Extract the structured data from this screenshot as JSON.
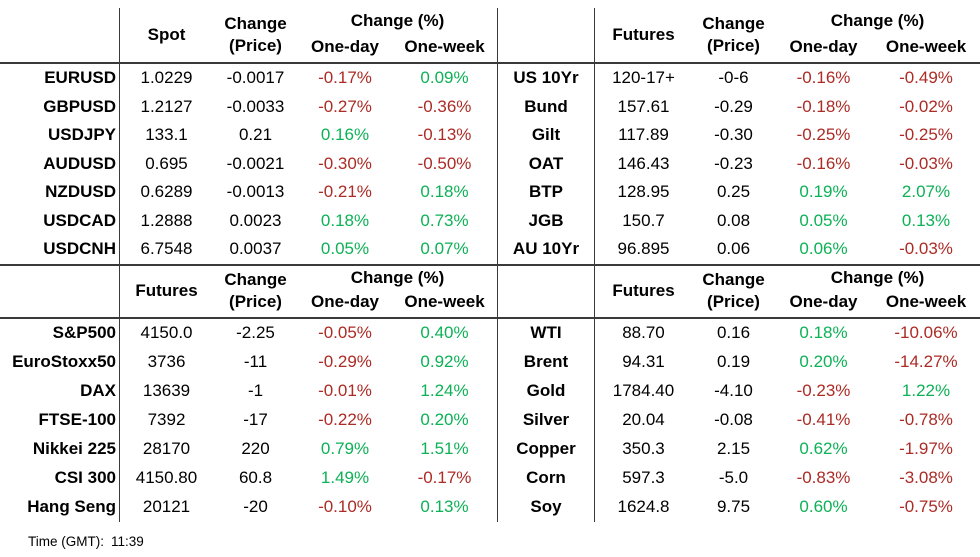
{
  "colors": {
    "positive": "#0db156",
    "negative": "#ac2b25"
  },
  "labels": {
    "change_price_line1": "Change",
    "change_price_line2": "(Price)",
    "change_pct": "Change (%)",
    "one_day": "One-day",
    "one_week": "One-week"
  },
  "footer": {
    "time_label": "Time (GMT):",
    "time_value": "11:39"
  },
  "tables": [
    {
      "id": "fx-spot",
      "value_header": "Spot",
      "rows": [
        {
          "label": "EURUSD",
          "value": "1.0229",
          "change": "-0.0017",
          "one_day": "-0.17%",
          "one_week": "0.09%"
        },
        {
          "label": "GBPUSD",
          "value": "1.2127",
          "change": "-0.0033",
          "one_day": "-0.27%",
          "one_week": "-0.36%"
        },
        {
          "label": "USDJPY",
          "value": "133.1",
          "change": "0.21",
          "one_day": "0.16%",
          "one_week": "-0.13%"
        },
        {
          "label": "AUDUSD",
          "value": "0.695",
          "change": "-0.0021",
          "one_day": "-0.30%",
          "one_week": "-0.50%"
        },
        {
          "label": "NZDUSD",
          "value": "0.6289",
          "change": "-0.0013",
          "one_day": "-0.21%",
          "one_week": "0.18%"
        },
        {
          "label": "USDCAD",
          "value": "1.2888",
          "change": "0.0023",
          "one_day": "0.18%",
          "one_week": "0.73%"
        },
        {
          "label": "USDCNH",
          "value": "6.7548",
          "change": "0.0037",
          "one_day": "0.05%",
          "one_week": "0.07%"
        }
      ]
    },
    {
      "id": "bond-futures",
      "value_header": "Futures",
      "rows": [
        {
          "label": "US 10Yr",
          "value": "120-17+",
          "change": "-0-6",
          "one_day": "-0.16%",
          "one_week": "-0.49%"
        },
        {
          "label": "Bund",
          "value": "157.61",
          "change": "-0.29",
          "one_day": "-0.18%",
          "one_week": "-0.02%"
        },
        {
          "label": "Gilt",
          "value": "117.89",
          "change": "-0.30",
          "one_day": "-0.25%",
          "one_week": "-0.25%"
        },
        {
          "label": "OAT",
          "value": "146.43",
          "change": "-0.23",
          "one_day": "-0.16%",
          "one_week": "-0.03%"
        },
        {
          "label": "BTP",
          "value": "128.95",
          "change": "0.25",
          "one_day": "0.19%",
          "one_week": "2.07%"
        },
        {
          "label": "JGB",
          "value": "150.7",
          "change": "0.08",
          "one_day": "0.05%",
          "one_week": "0.13%"
        },
        {
          "label": "AU 10Yr",
          "value": "96.895",
          "change": "0.06",
          "one_day": "0.06%",
          "one_week": "-0.03%"
        }
      ]
    },
    {
      "id": "equity-index-futures",
      "value_header": "Futures",
      "rows": [
        {
          "label": "S&P500",
          "value": "4150.0",
          "change": "-2.25",
          "one_day": "-0.05%",
          "one_week": "0.40%"
        },
        {
          "label": "EuroStoxx50",
          "value": "3736",
          "change": "-11",
          "one_day": "-0.29%",
          "one_week": "0.92%"
        },
        {
          "label": "DAX",
          "value": "13639",
          "change": "-1",
          "one_day": "-0.01%",
          "one_week": "1.24%"
        },
        {
          "label": "FTSE-100",
          "value": "7392",
          "change": "-17",
          "one_day": "-0.22%",
          "one_week": "0.20%"
        },
        {
          "label": "Nikkei 225",
          "value": "28170",
          "change": "220",
          "one_day": "0.79%",
          "one_week": "1.51%"
        },
        {
          "label": "CSI 300",
          "value": "4150.80",
          "change": "60.8",
          "one_day": "1.49%",
          "one_week": "-0.17%"
        },
        {
          "label": "Hang Seng",
          "value": "20121",
          "change": "-20",
          "one_day": "-0.10%",
          "one_week": "0.13%"
        }
      ]
    },
    {
      "id": "commodity-futures",
      "value_header": "Futures",
      "rows": [
        {
          "label": "WTI",
          "value": "88.70",
          "change": "0.16",
          "one_day": "0.18%",
          "one_week": "-10.06%"
        },
        {
          "label": "Brent",
          "value": "94.31",
          "change": "0.19",
          "one_day": "0.20%",
          "one_week": "-14.27%"
        },
        {
          "label": "Gold",
          "value": "1784.40",
          "change": "-4.10",
          "one_day": "-0.23%",
          "one_week": "1.22%"
        },
        {
          "label": "Silver",
          "value": "20.04",
          "change": "-0.08",
          "one_day": "-0.41%",
          "one_week": "-0.78%"
        },
        {
          "label": "Copper",
          "value": "350.3",
          "change": "2.15",
          "one_day": "0.62%",
          "one_week": "-1.97%"
        },
        {
          "label": "Corn",
          "value": "597.3",
          "change": "-5.0",
          "one_day": "-0.83%",
          "one_week": "-3.08%"
        },
        {
          "label": "Soy",
          "value": "1624.8",
          "change": "9.75",
          "one_day": "0.60%",
          "one_week": "-0.75%"
        }
      ]
    }
  ]
}
